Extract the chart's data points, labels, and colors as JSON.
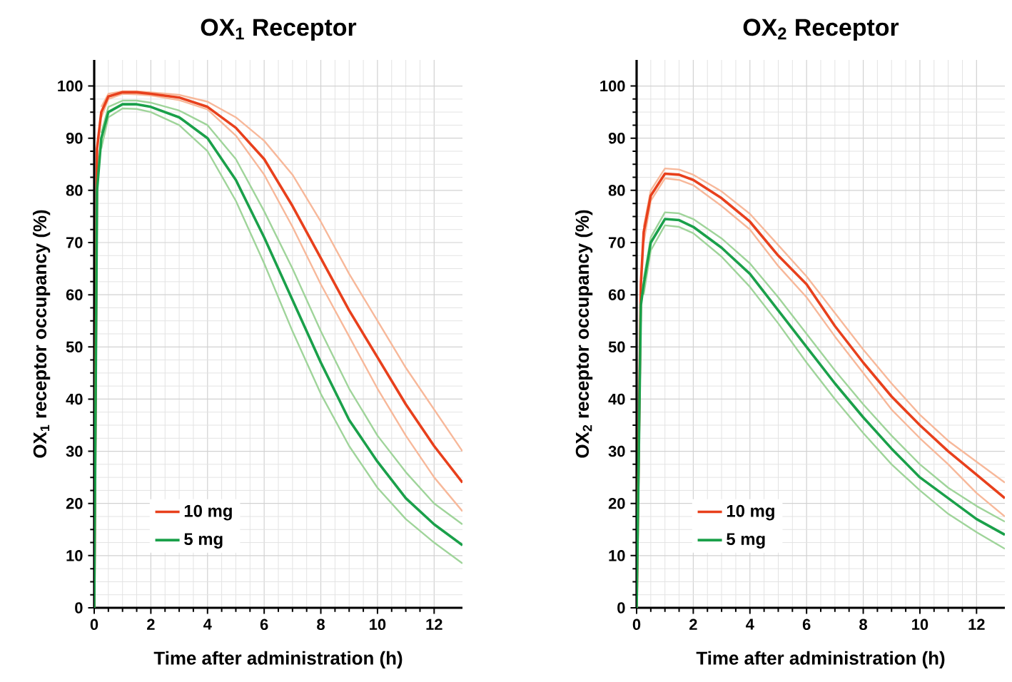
{
  "chart_data": [
    {
      "type": "line",
      "title": "OX$_{1}$ Receptor",
      "xlabel": "Time after administration (h)",
      "ylabel": "OX$_{1}$ receptor occupancy (%)",
      "x": [
        0,
        0.1,
        0.25,
        0.5,
        1,
        1.5,
        2,
        3,
        4,
        5,
        6,
        7,
        8,
        9,
        10,
        11,
        12,
        13
      ],
      "series": [
        {
          "color": "#f7b89a",
          "values": [
            null,
            null,
            96,
            98.5,
            99,
            99,
            98.8,
            98.3,
            97,
            94,
            89.5,
            83,
            74,
            64,
            55,
            46,
            38,
            30
          ]
        },
        {
          "color": "#f7b89a",
          "values": [
            null,
            null,
            94,
            97.5,
            98.5,
            98.4,
            98.2,
            97.3,
            95.5,
            90.5,
            83,
            73,
            62,
            52,
            42,
            33,
            25,
            18.5
          ]
        },
        {
          "color": "#9fd49a",
          "values": [
            null,
            null,
            91,
            96,
            97.2,
            97.2,
            96.8,
            95.3,
            92.5,
            86,
            76,
            65,
            53,
            42,
            33,
            26,
            20,
            16
          ]
        },
        {
          "color": "#9fd49a",
          "values": [
            null,
            null,
            88,
            94,
            95.7,
            95.6,
            95,
            92.5,
            87.5,
            78,
            66,
            53,
            41,
            31,
            23,
            17,
            12.5,
            8.5
          ]
        },
        {
          "name": "10 mg",
          "color": "#e8401c",
          "values": [
            0,
            88,
            95,
            98,
            98.8,
            98.8,
            98.5,
            97.8,
            96,
            92,
            86,
            77,
            67,
            57,
            48,
            39,
            31,
            24
          ]
        },
        {
          "name": "5 mg",
          "color": "#1aa04a",
          "values": [
            0,
            80,
            90,
            95,
            96.5,
            96.5,
            96,
            94,
            90,
            82,
            71,
            59,
            47,
            36,
            28,
            21,
            16,
            12
          ]
        }
      ],
      "xlim": [
        0,
        13
      ],
      "ylim": [
        0,
        105
      ],
      "xticks": [
        0,
        2,
        4,
        6,
        8,
        10,
        12
      ],
      "yticks": [
        0,
        10,
        20,
        30,
        40,
        50,
        60,
        70,
        80,
        90,
        100
      ],
      "grid": true,
      "legend": "bottom left"
    },
    {
      "type": "line",
      "title": "OX$_{2}$ Receptor",
      "xlabel": "Time after administration (h)",
      "ylabel": "OX$_{2}$ receptor occupancy (%)",
      "x": [
        0,
        0.15,
        0.25,
        0.5,
        1,
        1.5,
        2,
        3,
        4,
        5,
        6,
        7,
        8,
        9,
        10,
        11,
        12,
        13
      ],
      "series": [
        {
          "color": "#f7b89a",
          "values": [
            null,
            null,
            73,
            80,
            84.2,
            84,
            83,
            79.8,
            75.5,
            69.5,
            63.5,
            56.5,
            49.5,
            43,
            37,
            32,
            28,
            24
          ]
        },
        {
          "color": "#f7b89a",
          "values": [
            null,
            null,
            70,
            78,
            82.3,
            82,
            81,
            77,
            72.5,
            65.5,
            59.5,
            52,
            45,
            38,
            32.5,
            27.5,
            22,
            17.5
          ]
        },
        {
          "color": "#9fd49a",
          "values": [
            null,
            null,
            63,
            71,
            75.8,
            75.6,
            74.5,
            70.8,
            66,
            59.5,
            52.5,
            45.5,
            39,
            33,
            27.5,
            23,
            19.5,
            16.5
          ]
        },
        {
          "color": "#9fd49a",
          "values": [
            null,
            null,
            60,
            68.5,
            73.3,
            73,
            71.8,
            67.3,
            61.5,
            54.5,
            47,
            40,
            33.5,
            27.5,
            22.5,
            18,
            14.5,
            11.3
          ]
        },
        {
          "name": "10 mg",
          "color": "#e8401c",
          "values": [
            0,
            62,
            72,
            79,
            83.2,
            83,
            82,
            78.5,
            74,
            67.5,
            62,
            54,
            47,
            40.5,
            35,
            30,
            25.5,
            21
          ]
        },
        {
          "name": "5 mg",
          "color": "#1aa04a",
          "values": [
            0,
            58,
            62,
            70,
            74.5,
            74.3,
            73,
            69,
            64,
            57,
            50,
            43,
            36.5,
            30.5,
            25,
            21,
            17,
            14
          ]
        }
      ],
      "xlim": [
        0,
        13
      ],
      "ylim": [
        0,
        105
      ],
      "xticks": [
        0,
        2,
        4,
        6,
        8,
        10,
        12
      ],
      "yticks": [
        0,
        10,
        20,
        30,
        40,
        50,
        60,
        70,
        80,
        90,
        100
      ],
      "grid": true,
      "legend": "bottom left"
    }
  ]
}
